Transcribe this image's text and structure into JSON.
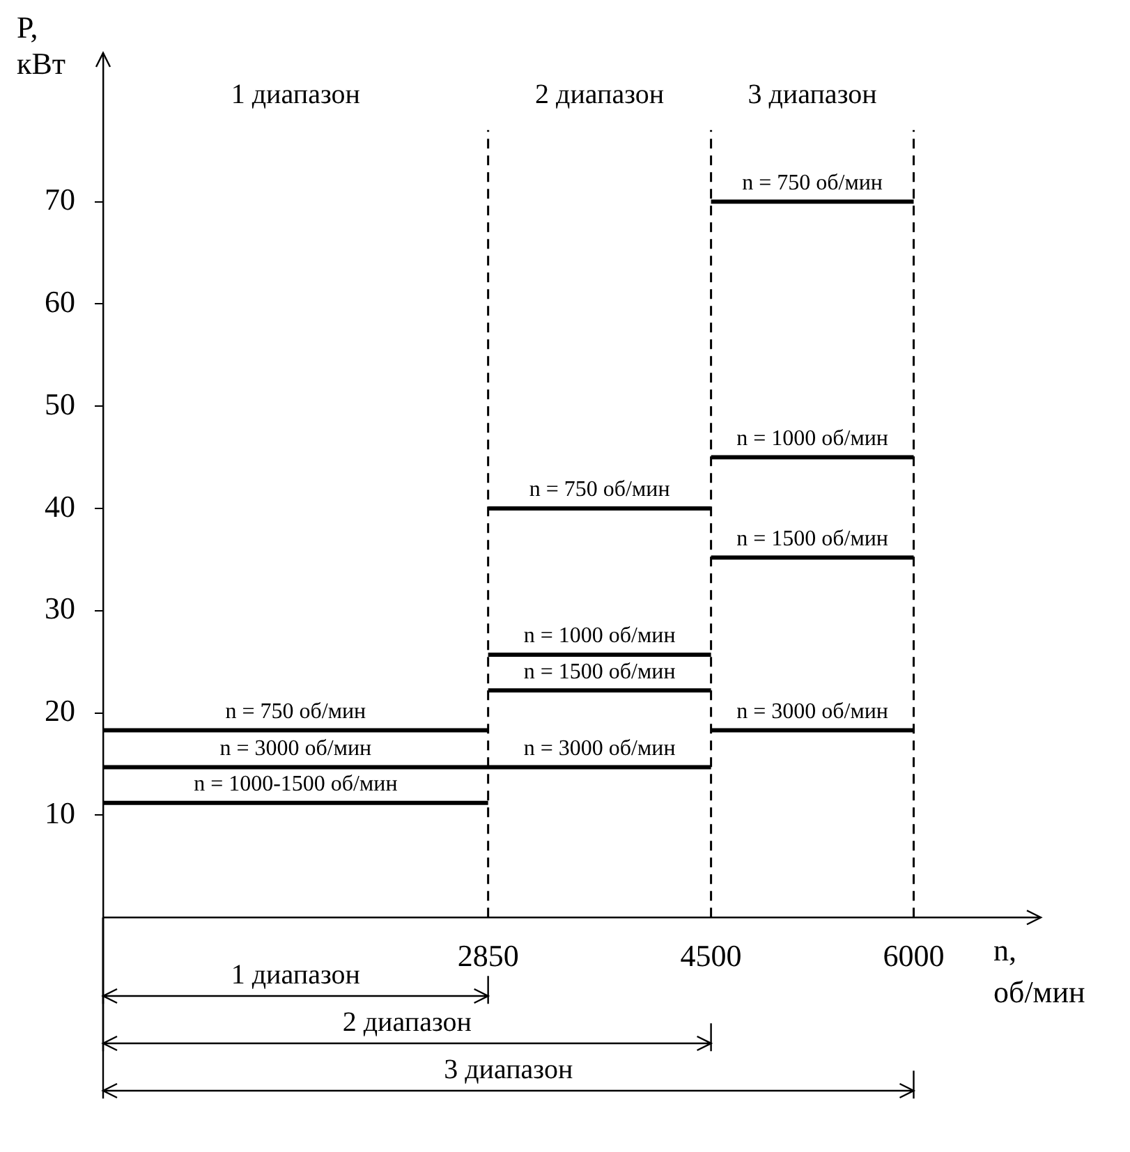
{
  "chart_data": {
    "type": "line",
    "xlabel": "n, об/мин",
    "ylabel": "P, кВт",
    "xlim": [
      0,
      6900
    ],
    "ylim": [
      0,
      84
    ],
    "xticks": [
      2850,
      4500,
      6000
    ],
    "yticks": [
      10,
      20,
      30,
      40,
      50,
      60,
      70
    ],
    "series": [
      {
        "type": "line",
        "color": "#000000",
        "x": [
          0,
          2850
        ],
        "values": [
          18.3,
          18.3
        ]
      },
      {
        "type": "line",
        "color": "#000000",
        "x": [
          0,
          4500
        ],
        "values": [
          14.7,
          14.7
        ]
      },
      {
        "type": "line",
        "color": "#000000",
        "x": [
          0,
          2850
        ],
        "values": [
          11.2,
          11.2
        ]
      },
      {
        "type": "line",
        "color": "#000000",
        "x": [
          2850,
          4500
        ],
        "values": [
          40,
          40
        ]
      },
      {
        "type": "line",
        "color": "#000000",
        "x": [
          2850,
          4500
        ],
        "values": [
          25.7,
          25.7
        ]
      },
      {
        "type": "line",
        "color": "#000000",
        "x": [
          2850,
          4500
        ],
        "values": [
          22.2,
          22.2
        ]
      },
      {
        "type": "line",
        "color": "#000000",
        "x": [
          4500,
          6000
        ],
        "values": [
          70,
          70
        ]
      },
      {
        "type": "line",
        "color": "#000000",
        "x": [
          4500,
          6000
        ],
        "values": [
          45,
          45
        ]
      },
      {
        "type": "line",
        "color": "#000000",
        "x": [
          4500,
          6000
        ],
        "values": [
          35.2,
          35.2
        ]
      },
      {
        "type": "line",
        "color": "#000000",
        "x": [
          4500,
          6000
        ],
        "values": [
          18.3,
          18.3
        ]
      }
    ],
    "ref_lines": [
      {
        "axis": "x",
        "value": 2850,
        "line_style": "dashed",
        "color": "#000000"
      },
      {
        "axis": "x",
        "value": 4500,
        "line_style": "dashed",
        "color": "#000000"
      },
      {
        "axis": "x",
        "value": 6000,
        "line_style": "dashed",
        "color": "#000000"
      }
    ],
    "line_style": "solid",
    "annotations": [
      "1 диапазон",
      "2 диапазон",
      "3 диапазон",
      "1 диапазон",
      "2 диапазон",
      "3 диапазон",
      {
        "text": "n = 750 об/мин",
        "x": 1425,
        "y": 18.3
      },
      {
        "text": "n = 3000 об/мин",
        "x": 1425,
        "y": 14.7
      },
      {
        "text": "n = 1000-1500 об/мин",
        "x": 1425,
        "y": 11.2
      },
      {
        "text": "n = 750 об/мин",
        "x": 3675,
        "y": 40
      },
      {
        "text": "n = 1000 об/мин",
        "x": 3675,
        "y": 25.7
      },
      {
        "text": "n = 1500 об/мин",
        "x": 3675,
        "y": 22.2
      },
      {
        "text": "n = 3000 об/мин",
        "x": 3675,
        "y": 14.7
      },
      {
        "text": "n = 750 об/мин",
        "x": 5250,
        "y": 70
      },
      {
        "text": "n = 1000 об/мин",
        "x": 5250,
        "y": 45
      },
      {
        "text": "n = 1500 об/мин",
        "x": 5250,
        "y": 35.2
      },
      {
        "text": "n = 3000 об/мин",
        "x": 5250,
        "y": 18.3
      }
    ]
  }
}
